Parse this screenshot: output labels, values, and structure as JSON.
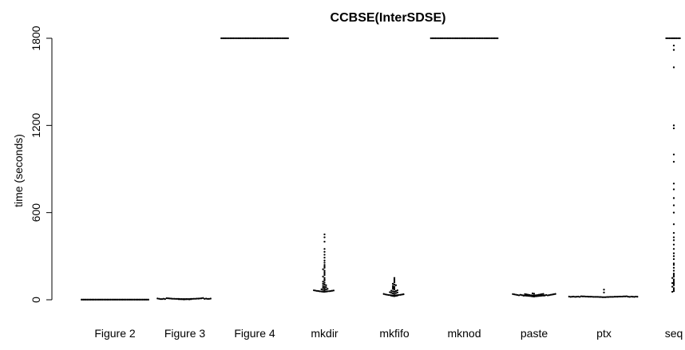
{
  "chart_data": {
    "type": "scatter",
    "title": "CCBSE(InterSDSE)",
    "xlabel": "",
    "ylabel": "time (seconds)",
    "ylim": [
      0,
      1800
    ],
    "yticks": [
      0,
      600,
      1200,
      1800
    ],
    "categories": [
      "Figure 2",
      "Figure 3",
      "Figure 4",
      "mkdir",
      "mkfifo",
      "mknod",
      "paste",
      "ptx",
      "seq"
    ],
    "color": "#000000",
    "series": [
      {
        "category": "Figure 2",
        "values": [
          1,
          1,
          1,
          1,
          1,
          1,
          1,
          1,
          1,
          1,
          1,
          1,
          1,
          1,
          1,
          1,
          1,
          1,
          1,
          1,
          1,
          1,
          1,
          1,
          1,
          1,
          1,
          1,
          1,
          1,
          1,
          1,
          1,
          1,
          1,
          1,
          1,
          1,
          1,
          1,
          1,
          1,
          1,
          1,
          1
        ]
      },
      {
        "category": "Figure 3",
        "values": [
          3,
          3,
          4,
          4,
          4,
          4,
          5,
          5,
          5,
          5,
          5,
          5,
          5,
          6,
          6,
          6,
          6,
          6,
          7,
          7,
          7,
          7,
          8,
          8,
          8,
          9,
          9,
          10,
          10,
          11,
          12,
          3,
          4,
          5,
          6,
          7,
          8,
          4,
          5,
          6,
          5,
          6,
          7,
          8,
          9
        ]
      },
      {
        "category": "Figure 4",
        "values": [
          1800,
          1800,
          1800,
          1800,
          1800,
          1800,
          1800,
          1800,
          1800,
          1800,
          1800,
          1800,
          1800,
          1800,
          1800,
          1800,
          1800,
          1800,
          1800,
          1800,
          1800,
          1800,
          1800,
          1800,
          1800,
          1800,
          1800,
          1800,
          1800,
          1800,
          1800,
          1800,
          1800,
          1800,
          1800,
          1800,
          1800,
          1800,
          1800,
          1800,
          1800,
          1800,
          1800,
          1800,
          1800
        ]
      },
      {
        "category": "mkdir",
        "values": [
          55,
          55,
          56,
          57,
          58,
          58,
          59,
          60,
          60,
          61,
          62,
          63,
          64,
          65,
          66,
          68,
          70,
          72,
          75,
          78,
          82,
          86,
          90,
          95,
          100,
          105,
          110,
          118,
          125,
          133,
          140,
          150,
          160,
          170,
          180,
          190,
          200,
          210,
          220,
          230,
          240,
          255,
          270,
          290,
          310,
          330,
          350,
          400,
          430,
          450
        ]
      },
      {
        "category": "mkfifo",
        "values": [
          25,
          26,
          27,
          28,
          29,
          30,
          30,
          31,
          31,
          32,
          32,
          33,
          33,
          34,
          35,
          36,
          37,
          38,
          40,
          42,
          44,
          46,
          48,
          50,
          52,
          55,
          58,
          60,
          62,
          65,
          70,
          75,
          80,
          85,
          90,
          95,
          100,
          105,
          110,
          120,
          130,
          140,
          150
        ]
      },
      {
        "category": "mknod",
        "values": [
          1800,
          1800,
          1800,
          1800,
          1800,
          1800,
          1800,
          1800,
          1800,
          1800,
          1800,
          1800,
          1800,
          1800,
          1800,
          1800,
          1800,
          1800,
          1800,
          1800,
          1800,
          1800,
          1800,
          1800,
          1800,
          1800,
          1800,
          1800,
          1800,
          1800,
          1800,
          1800,
          1800,
          1800,
          1800,
          1800,
          1800,
          1800,
          1800,
          1800,
          1800,
          1800,
          1800,
          1800,
          1800
        ]
      },
      {
        "category": "paste",
        "values": [
          22,
          23,
          24,
          25,
          25,
          26,
          26,
          27,
          27,
          28,
          28,
          29,
          29,
          30,
          30,
          31,
          31,
          32,
          33,
          34,
          35,
          36,
          37,
          38,
          39,
          40,
          42,
          44,
          30,
          31,
          32,
          33,
          34,
          28,
          29,
          30,
          31,
          32,
          33,
          34,
          35,
          36,
          37,
          38,
          39,
          40
        ]
      },
      {
        "category": "ptx",
        "values": [
          18,
          18,
          18,
          19,
          19,
          19,
          19,
          20,
          20,
          20,
          20,
          20,
          20,
          20,
          21,
          21,
          21,
          21,
          21,
          21,
          22,
          22,
          22,
          22,
          22,
          23,
          23,
          23,
          23,
          24,
          24,
          20,
          21,
          22,
          20,
          21,
          22,
          20,
          21,
          22,
          20,
          21,
          22,
          20,
          21,
          22,
          50,
          70
        ]
      },
      {
        "category": "seq",
        "values": [
          1800,
          1800,
          1800,
          1800,
          1800,
          1800,
          1800,
          1800,
          1800,
          1800,
          1750,
          1720,
          1600,
          1200,
          1180,
          1000,
          950,
          800,
          760,
          700,
          650,
          600,
          520,
          460,
          430,
          410,
          380,
          350,
          320,
          300,
          280,
          250,
          240,
          220,
          200,
          180,
          170,
          160,
          150,
          140,
          130,
          120,
          115,
          110,
          100,
          90,
          80,
          70,
          60,
          55
        ]
      }
    ]
  }
}
